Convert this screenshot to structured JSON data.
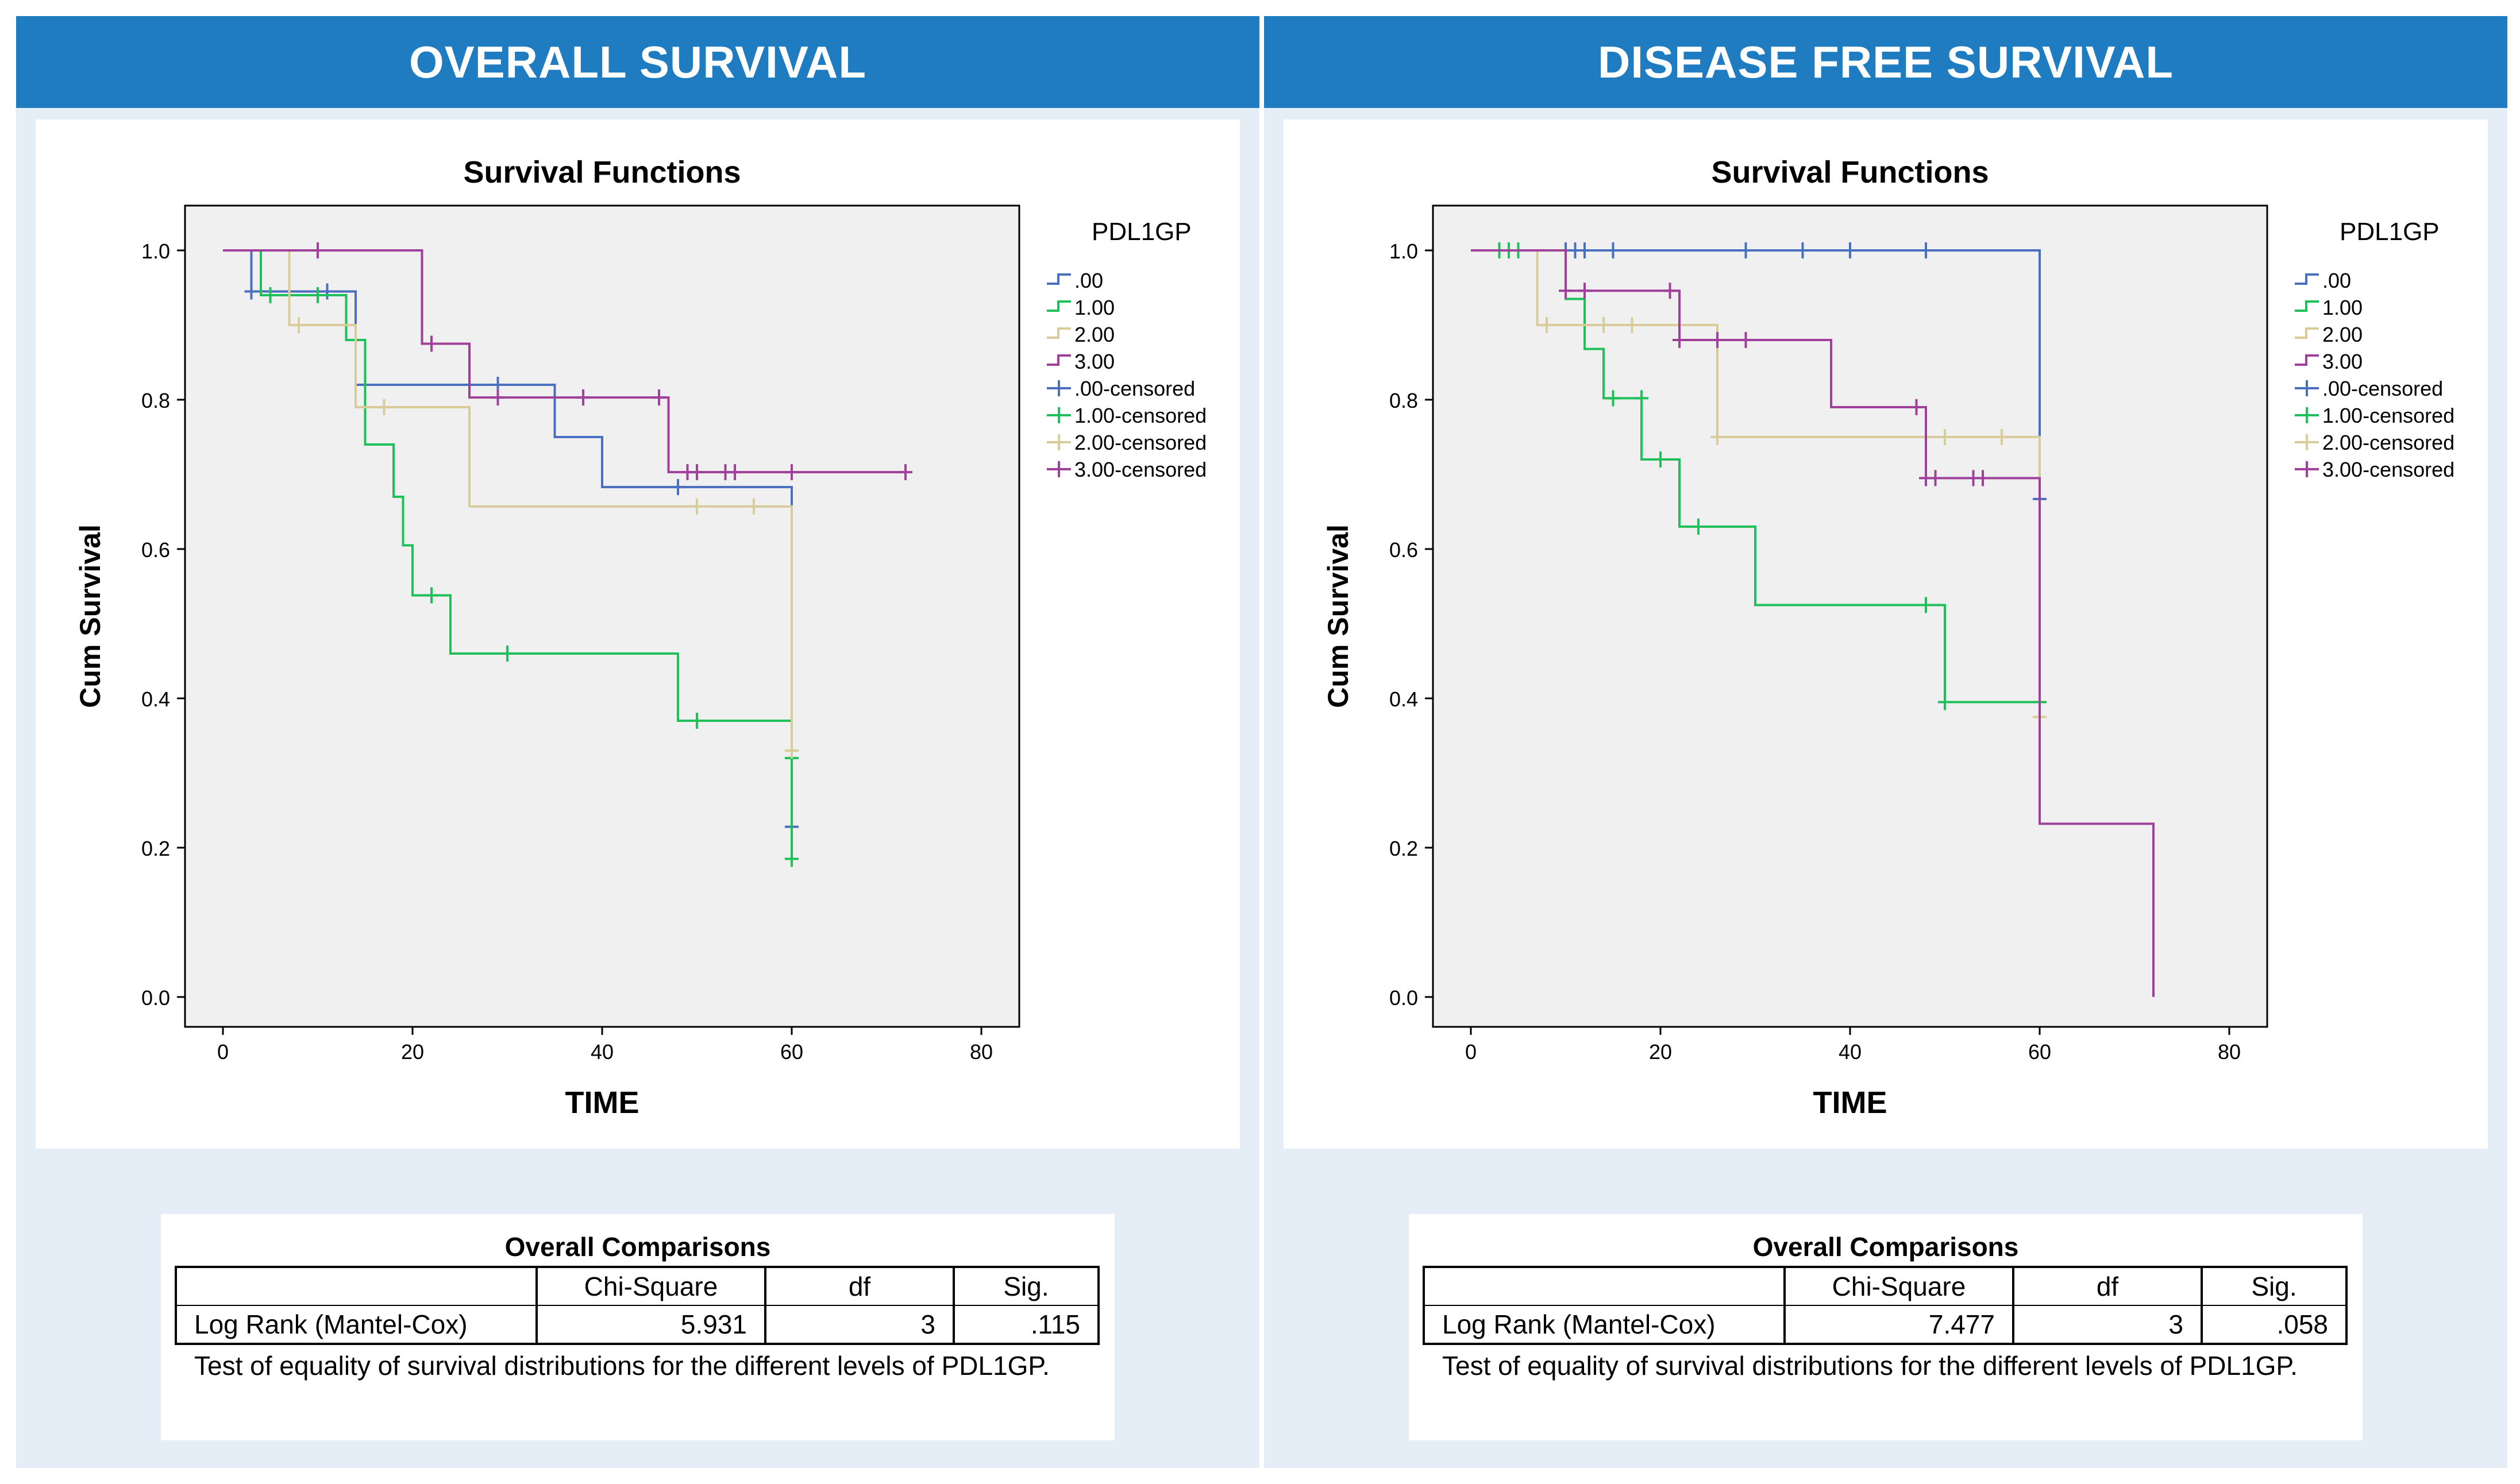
{
  "panels": [
    {
      "header": "OVERALL SURVIVAL",
      "chart_data": {
        "type": "line",
        "title": "Survival Functions",
        "xlabel": "TIME",
        "ylabel": "Cum Survival",
        "xlim": [
          -4,
          84
        ],
        "ylim": [
          -0.04,
          1.06
        ],
        "xticks": [
          0,
          20,
          40,
          60,
          80
        ],
        "yticks": [
          0.0,
          0.2,
          0.4,
          0.6,
          0.8,
          1.0
        ],
        "xtick_labels": [
          "0",
          "20",
          "40",
          "60",
          "80"
        ],
        "ytick_labels": [
          "0.0",
          "0.2",
          "0.4",
          "0.6",
          "0.8",
          "1.0"
        ],
        "legend_title": "PDL1GP",
        "legend": [
          ".00",
          "1.00",
          "2.00",
          "3.00",
          ".00-censored",
          "1.00-censored",
          "2.00-censored",
          "3.00-censored"
        ],
        "series": [
          {
            "name": ".00",
            "color": "#4a6fbf",
            "steps": [
              [
                0,
                1.0
              ],
              [
                3,
                0.945
              ],
              [
                14,
                0.82
              ],
              [
                35,
                0.75
              ],
              [
                40,
                0.683
              ],
              [
                60,
                0.228
              ]
            ],
            "censored": [
              [
                3,
                0.945
              ],
              [
                11,
                0.945
              ],
              [
                29,
                0.82
              ],
              [
                48,
                0.683
              ],
              [
                60,
                0.228
              ]
            ]
          },
          {
            "name": "1.00",
            "color": "#1fbf5a",
            "steps": [
              [
                0,
                1.0
              ],
              [
                4,
                0.94
              ],
              [
                13,
                0.88
              ],
              [
                15,
                0.74
              ],
              [
                18,
                0.67
              ],
              [
                19,
                0.605
              ],
              [
                20,
                0.538
              ],
              [
                24,
                0.46
              ],
              [
                48,
                0.37
              ],
              [
                60,
                0.185
              ]
            ],
            "censored": [
              [
                5,
                0.94
              ],
              [
                10,
                0.94
              ],
              [
                22,
                0.538
              ],
              [
                30,
                0.46
              ],
              [
                50,
                0.37
              ],
              [
                60,
                0.32
              ],
              [
                60,
                0.185
              ]
            ]
          },
          {
            "name": "2.00",
            "color": "#d8cc9a",
            "steps": [
              [
                0,
                1.0
              ],
              [
                7,
                0.9
              ],
              [
                14,
                0.79
              ],
              [
                26,
                0.657
              ],
              [
                60,
                0.33
              ]
            ],
            "censored": [
              [
                8,
                0.9
              ],
              [
                17,
                0.79
              ],
              [
                50,
                0.657
              ],
              [
                56,
                0.657
              ],
              [
                60,
                0.33
              ]
            ]
          },
          {
            "name": "3.00",
            "color": "#a0409a",
            "steps": [
              [
                0,
                1.0
              ],
              [
                21,
                0.875
              ],
              [
                26,
                0.803
              ],
              [
                47,
                0.703
              ],
              [
                72,
                0.703
              ]
            ],
            "censored": [
              [
                10,
                1.0
              ],
              [
                22,
                0.875
              ],
              [
                29,
                0.803
              ],
              [
                38,
                0.803
              ],
              [
                46,
                0.803
              ],
              [
                49,
                0.703
              ],
              [
                50,
                0.703
              ],
              [
                53,
                0.703
              ],
              [
                54,
                0.703
              ],
              [
                60,
                0.703
              ],
              [
                72,
                0.703
              ]
            ]
          }
        ]
      },
      "comparison": {
        "title": "Overall Comparisons",
        "columns": [
          "",
          "Chi-Square",
          "df",
          "Sig."
        ],
        "row": [
          "Log Rank (Mantel-Cox)",
          "5.931",
          "3",
          ".115"
        ],
        "footnote": "Test of equality of survival distributions for the different levels of PDL1GP."
      }
    },
    {
      "header": "DISEASE FREE SURVIVAL",
      "chart_data": {
        "type": "line",
        "title": "Survival Functions",
        "xlabel": "TIME",
        "ylabel": "Cum Survival",
        "xlim": [
          -4,
          84
        ],
        "ylim": [
          -0.04,
          1.06
        ],
        "xticks": [
          0,
          20,
          40,
          60,
          80
        ],
        "yticks": [
          0.0,
          0.2,
          0.4,
          0.6,
          0.8,
          1.0
        ],
        "xtick_labels": [
          "0",
          "20",
          "40",
          "60",
          "80"
        ],
        "ytick_labels": [
          "0.0",
          "0.2",
          "0.4",
          "0.6",
          "0.8",
          "1.0"
        ],
        "legend_title": "PDL1GP",
        "legend": [
          ".00",
          "1.00",
          "2.00",
          "3.00",
          ".00-censored",
          "1.00-censored",
          "2.00-censored",
          "3.00-censored"
        ],
        "series": [
          {
            "name": ".00",
            "color": "#4a6fbf",
            "steps": [
              [
                0,
                1.0
              ],
              [
                60,
                0.667
              ]
            ],
            "censored": [
              [
                3,
                1.0
              ],
              [
                4,
                1.0
              ],
              [
                10,
                1.0
              ],
              [
                11,
                1.0
              ],
              [
                12,
                1.0
              ],
              [
                15,
                1.0
              ],
              [
                29,
                1.0
              ],
              [
                35,
                1.0
              ],
              [
                40,
                1.0
              ],
              [
                48,
                1.0
              ],
              [
                60,
                0.667
              ]
            ]
          },
          {
            "name": "1.00",
            "color": "#1fbf5a",
            "steps": [
              [
                0,
                1.0
              ],
              [
                10,
                0.935
              ],
              [
                12,
                0.868
              ],
              [
                14,
                0.802
              ],
              [
                18,
                0.72
              ],
              [
                20,
                0.72
              ],
              [
                22,
                0.63
              ],
              [
                30,
                0.525
              ],
              [
                50,
                0.395
              ],
              [
                60,
                0.395
              ]
            ],
            "censored": [
              [
                3,
                1.0
              ],
              [
                4,
                1.0
              ],
              [
                5,
                1.0
              ],
              [
                15,
                0.802
              ],
              [
                18,
                0.802
              ],
              [
                20,
                0.72
              ],
              [
                24,
                0.63
              ],
              [
                48,
                0.525
              ],
              [
                50,
                0.395
              ],
              [
                60,
                0.395
              ]
            ]
          },
          {
            "name": "2.00",
            "color": "#d8cc9a",
            "steps": [
              [
                0,
                1.0
              ],
              [
                7,
                0.9
              ],
              [
                26,
                0.75
              ],
              [
                60,
                0.375
              ]
            ],
            "censored": [
              [
                8,
                0.9
              ],
              [
                14,
                0.9
              ],
              [
                17,
                0.9
              ],
              [
                26,
                0.75
              ],
              [
                50,
                0.75
              ],
              [
                56,
                0.75
              ],
              [
                60,
                0.375
              ]
            ]
          },
          {
            "name": "3.00",
            "color": "#a0409a",
            "steps": [
              [
                0,
                1.0
              ],
              [
                10,
                0.946
              ],
              [
                22,
                0.88
              ],
              [
                38,
                0.79
              ],
              [
                48,
                0.695
              ],
              [
                60,
                0.232
              ],
              [
                72,
                0.0
              ]
            ],
            "censored": [
              [
                10,
                0.946
              ],
              [
                12,
                0.946
              ],
              [
                21,
                0.946
              ],
              [
                22,
                0.88
              ],
              [
                26,
                0.88
              ],
              [
                29,
                0.88
              ],
              [
                47,
                0.79
              ],
              [
                48,
                0.695
              ],
              [
                49,
                0.695
              ],
              [
                53,
                0.695
              ],
              [
                54,
                0.695
              ]
            ]
          }
        ]
      },
      "comparison": {
        "title": "Overall Comparisons",
        "columns": [
          "",
          "Chi-Square",
          "df",
          "Sig."
        ],
        "row": [
          "Log Rank (Mantel-Cox)",
          "7.477",
          "3",
          ".058"
        ],
        "footnote": "Test of equality of survival distributions for the different levels of PDL1GP."
      }
    }
  ]
}
